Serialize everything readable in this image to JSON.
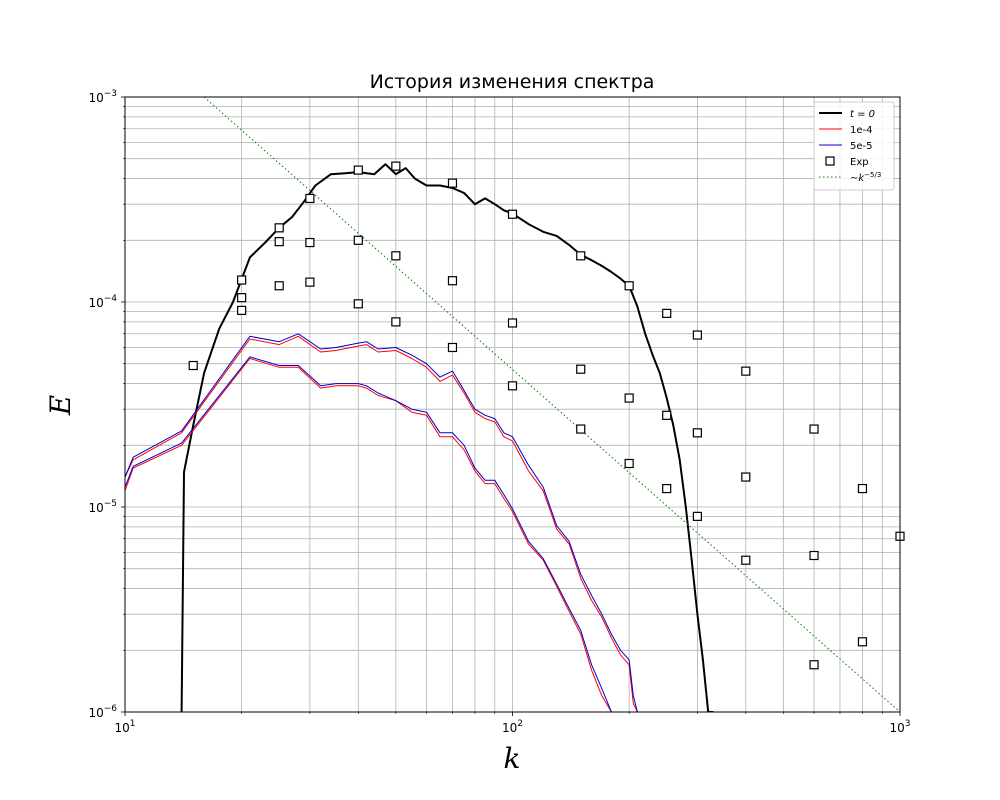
{
  "chart_data": {
    "type": "line",
    "title": "История изменения спектра",
    "xlabel": "k",
    "ylabel": "E",
    "xscale": "log",
    "yscale": "log",
    "xlim": [
      10,
      1000
    ],
    "ylim": [
      1e-06,
      0.001
    ],
    "grid": "both (major and minor)",
    "legend_position": "upper right",
    "xticks": [
      {
        "value": 10,
        "base": "10",
        "exp": "1"
      },
      {
        "value": 100,
        "base": "10",
        "exp": "2"
      },
      {
        "value": 1000,
        "base": "10",
        "exp": "3"
      }
    ],
    "yticks": [
      {
        "value": 1e-06,
        "base": "10",
        "exp": "−6"
      },
      {
        "value": 1e-05,
        "base": "10",
        "exp": "−5"
      },
      {
        "value": 0.0001,
        "base": "10",
        "exp": "−4"
      },
      {
        "value": 0.001,
        "base": "10",
        "exp": "−3"
      }
    ],
    "legend": [
      {
        "label": "t = 0",
        "style": "line",
        "color": "#000000"
      },
      {
        "label": "1e-4",
        "style": "line",
        "color": "#ff0000"
      },
      {
        "label": "5e-5",
        "style": "line",
        "color": "#0000cc"
      },
      {
        "label": "Exp",
        "style": "marker",
        "color": "#000000"
      },
      {
        "label": "∼k",
        "label_sup": "−5/3",
        "style": "dotted",
        "color": "#008000"
      }
    ],
    "series": [
      {
        "name": "t = 0",
        "color": "#000000",
        "width": 2,
        "x": [
          14,
          14.2,
          15,
          16,
          17.5,
          19,
          21,
          23,
          25,
          27,
          29,
          31,
          34,
          37,
          40,
          44,
          47,
          50,
          53,
          56,
          60,
          65,
          70,
          75,
          80,
          85,
          90,
          95,
          100,
          110,
          120,
          130,
          140,
          150,
          160,
          170,
          180,
          190,
          200,
          210,
          220,
          230,
          240,
          250,
          260,
          270,
          280,
          290,
          300,
          310,
          320,
          330
        ],
        "y": [
          1e-06,
          1.48e-05,
          2.5e-05,
          4.5e-05,
          7.4e-05,
          0.0001,
          0.000165,
          0.000195,
          0.00023,
          0.00026,
          0.00031,
          0.00037,
          0.00042,
          0.000425,
          0.00043,
          0.00042,
          0.00047,
          0.00042,
          0.00045,
          0.0004,
          0.00037,
          0.00037,
          0.00036,
          0.00034,
          0.0003,
          0.00032,
          0.0003,
          0.00028,
          0.00027,
          0.00024,
          0.00022,
          0.00021,
          0.00019,
          0.00017,
          0.00016,
          0.00015,
          0.00014,
          0.00013,
          0.00012,
          9.5e-05,
          7e-05,
          5.5e-05,
          4.5e-05,
          3.4e-05,
          2.5e-05,
          1.7e-05,
          1e-05,
          5.5e-06,
          3e-06,
          1.8e-06,
          1e-06,
          1e-06
        ]
      },
      {
        "name": "1e-4 (upper)",
        "color": "#ff0000",
        "width": 1,
        "x": [
          10,
          10.5,
          14,
          21,
          25,
          28,
          32,
          35,
          40,
          42,
          45,
          50,
          55,
          60,
          65,
          70,
          75,
          80,
          85,
          90,
          95,
          100,
          110,
          120,
          130,
          140,
          150,
          160,
          170,
          180,
          190,
          200,
          205,
          210
        ],
        "y": [
          1.4e-05,
          1.7e-05,
          2.3e-05,
          6.6e-05,
          6.2e-05,
          6.8e-05,
          5.7e-05,
          5.8e-05,
          6.1e-05,
          6.2e-05,
          5.7e-05,
          5.8e-05,
          5.3e-05,
          4.8e-05,
          4.1e-05,
          4.4e-05,
          3.6e-05,
          2.9e-05,
          2.7e-05,
          2.6e-05,
          2.2e-05,
          2.1e-05,
          1.5e-05,
          1.2e-05,
          7.8e-06,
          6.6e-06,
          4.5e-06,
          3.5e-06,
          2.9e-06,
          2.3e-06,
          1.9e-06,
          1.7e-06,
          1.1e-06,
          1e-06
        ]
      },
      {
        "name": "5e-5 (upper)",
        "color": "#0000cc",
        "width": 1,
        "x": [
          10,
          10.5,
          14,
          21,
          25,
          28,
          32,
          35,
          40,
          42,
          45,
          50,
          55,
          60,
          65,
          70,
          75,
          80,
          85,
          90,
          95,
          100,
          110,
          120,
          130,
          140,
          150,
          160,
          170,
          180,
          190,
          200,
          205,
          210
        ],
        "y": [
          1.4e-05,
          1.75e-05,
          2.35e-05,
          6.8e-05,
          6.4e-05,
          7e-05,
          5.9e-05,
          6e-05,
          6.3e-05,
          6.4e-05,
          5.9e-05,
          6e-05,
          5.5e-05,
          5e-05,
          4.3e-05,
          4.6e-05,
          3.7e-05,
          3e-05,
          2.8e-05,
          2.7e-05,
          2.3e-05,
          2.2e-05,
          1.6e-05,
          1.25e-05,
          8.1e-06,
          6.8e-06,
          4.7e-06,
          3.7e-06,
          3e-06,
          2.4e-06,
          2e-06,
          1.8e-06,
          1.2e-06,
          1e-06
        ]
      },
      {
        "name": "1e-4 (lower)",
        "color": "#ff0000",
        "width": 1,
        "x": [
          10,
          10.5,
          14,
          21,
          25,
          28,
          32,
          35,
          40,
          42,
          45,
          50,
          55,
          60,
          65,
          70,
          75,
          80,
          85,
          90,
          95,
          100,
          110,
          120,
          130,
          140,
          150,
          160,
          170,
          180
        ],
        "y": [
          1.2e-05,
          1.55e-05,
          2e-05,
          5.3e-05,
          4.8e-05,
          4.8e-05,
          3.8e-05,
          3.9e-05,
          3.9e-05,
          3.8e-05,
          3.5e-05,
          3.3e-05,
          2.9e-05,
          2.8e-05,
          2.2e-05,
          2.2e-05,
          1.9e-05,
          1.5e-05,
          1.3e-05,
          1.3e-05,
          1.1e-05,
          9.5e-06,
          6.6e-06,
          5.5e-06,
          4.1e-06,
          3.1e-06,
          2.4e-06,
          1.6e-06,
          1.2e-06,
          1e-06
        ]
      },
      {
        "name": "5e-5 (lower)",
        "color": "#0000cc",
        "width": 1,
        "x": [
          10,
          10.5,
          14,
          21,
          25,
          28,
          32,
          35,
          40,
          42,
          45,
          50,
          55,
          60,
          65,
          70,
          75,
          80,
          85,
          90,
          95,
          100,
          110,
          120,
          130,
          140,
          150,
          160,
          170,
          180
        ],
        "y": [
          1.25e-05,
          1.58e-05,
          2.05e-05,
          5.4e-05,
          4.9e-05,
          4.9e-05,
          3.9e-05,
          4e-05,
          4e-05,
          3.9e-05,
          3.6e-05,
          3.3e-05,
          3e-05,
          2.9e-05,
          2.3e-05,
          2.3e-05,
          2e-05,
          1.55e-05,
          1.35e-05,
          1.35e-05,
          1.15e-05,
          9.8e-06,
          6.8e-06,
          5.6e-06,
          4.2e-06,
          3.2e-06,
          2.5e-06,
          1.7e-06,
          1.3e-06,
          1e-06
        ]
      },
      {
        "name": "∼k^−5/3",
        "color": "#008000",
        "width": 1,
        "dash": "1.5,2.5",
        "x": [
          16,
          1000
        ],
        "y": [
          0.001,
          1e-06
        ]
      }
    ],
    "markers": {
      "name": "Exp",
      "points": [
        [
          15,
          4.9e-05
        ],
        [
          20,
          0.000128
        ],
        [
          20,
          0.000105
        ],
        [
          20,
          9.1e-05
        ],
        [
          25,
          0.00023
        ],
        [
          25,
          0.000197
        ],
        [
          25,
          0.00012
        ],
        [
          30,
          0.00032
        ],
        [
          30,
          0.000195
        ],
        [
          30,
          0.000125
        ],
        [
          40,
          0.00044
        ],
        [
          40,
          0.0002
        ],
        [
          40,
          9.8e-05
        ],
        [
          50,
          0.00046
        ],
        [
          50,
          0.000168
        ],
        [
          50,
          8e-05
        ],
        [
          70,
          0.00038
        ],
        [
          70,
          0.000127
        ],
        [
          70,
          6e-05
        ],
        [
          100,
          0.000268
        ],
        [
          100,
          7.9e-05
        ],
        [
          100,
          3.9e-05
        ],
        [
          150,
          0.000168
        ],
        [
          150,
          4.7e-05
        ],
        [
          150,
          2.4e-05
        ],
        [
          200,
          0.00012
        ],
        [
          200,
          3.4e-05
        ],
        [
          200,
          1.63e-05
        ],
        [
          250,
          8.8e-05
        ],
        [
          250,
          2.8e-05
        ],
        [
          250,
          1.23e-05
        ],
        [
          300,
          6.9e-05
        ],
        [
          300,
          2.3e-05
        ],
        [
          300,
          9e-06
        ],
        [
          400,
          4.6e-05
        ],
        [
          400,
          1.4e-05
        ],
        [
          400,
          5.5e-06
        ],
        [
          600,
          2.4e-05
        ],
        [
          600,
          5.8e-06
        ],
        [
          600,
          1.7e-06
        ],
        [
          800,
          1.23e-05
        ],
        [
          800,
          2.2e-06
        ],
        [
          1000,
          7.2e-06
        ]
      ]
    }
  }
}
